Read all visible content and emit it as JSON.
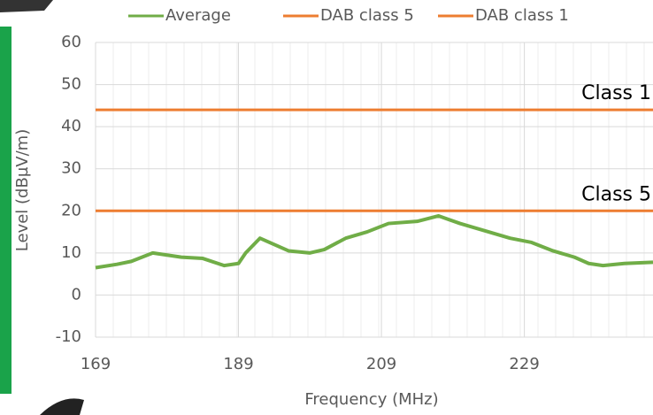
{
  "chart_data": {
    "type": "line",
    "x_label": "Frequency (MHz)",
    "y_label": "Level (dBµV/m)",
    "xlim": [
      169,
      247
    ],
    "xticks": [
      169,
      189,
      209,
      229
    ],
    "ylim": [
      -10,
      60
    ],
    "yticks": [
      -10,
      0,
      10,
      20,
      30,
      40,
      50,
      60
    ],
    "grid": true,
    "legend": "top",
    "series": [
      {
        "name": "Average",
        "color": "#70ad47",
        "x": [
          169,
          172,
          174,
          177,
          179,
          181,
          184,
          187,
          189,
          190,
          192,
          194,
          196,
          199,
          201,
          204,
          207,
          210,
          214,
          217,
          220,
          224,
          227,
          230,
          233,
          236,
          238,
          240,
          243,
          247
        ],
        "values": [
          6.5,
          7.3,
          8,
          10,
          9.5,
          9,
          8.7,
          7,
          7.5,
          10,
          13.5,
          12,
          10.5,
          10,
          10.8,
          13.5,
          15,
          17,
          17.5,
          18.8,
          17,
          15,
          13.5,
          12.5,
          10.5,
          9,
          7.5,
          7,
          7.5,
          7.8
        ]
      },
      {
        "name": "DAB class 5",
        "color": "#ed7d31",
        "x": [
          169,
          247
        ],
        "values": [
          20,
          20
        ]
      },
      {
        "name": "DAB class 1",
        "color": "#ed7d31",
        "x": [
          169,
          247
        ],
        "values": [
          44,
          44
        ]
      }
    ],
    "annotations": [
      "Class 1",
      "Class 5"
    ]
  }
}
